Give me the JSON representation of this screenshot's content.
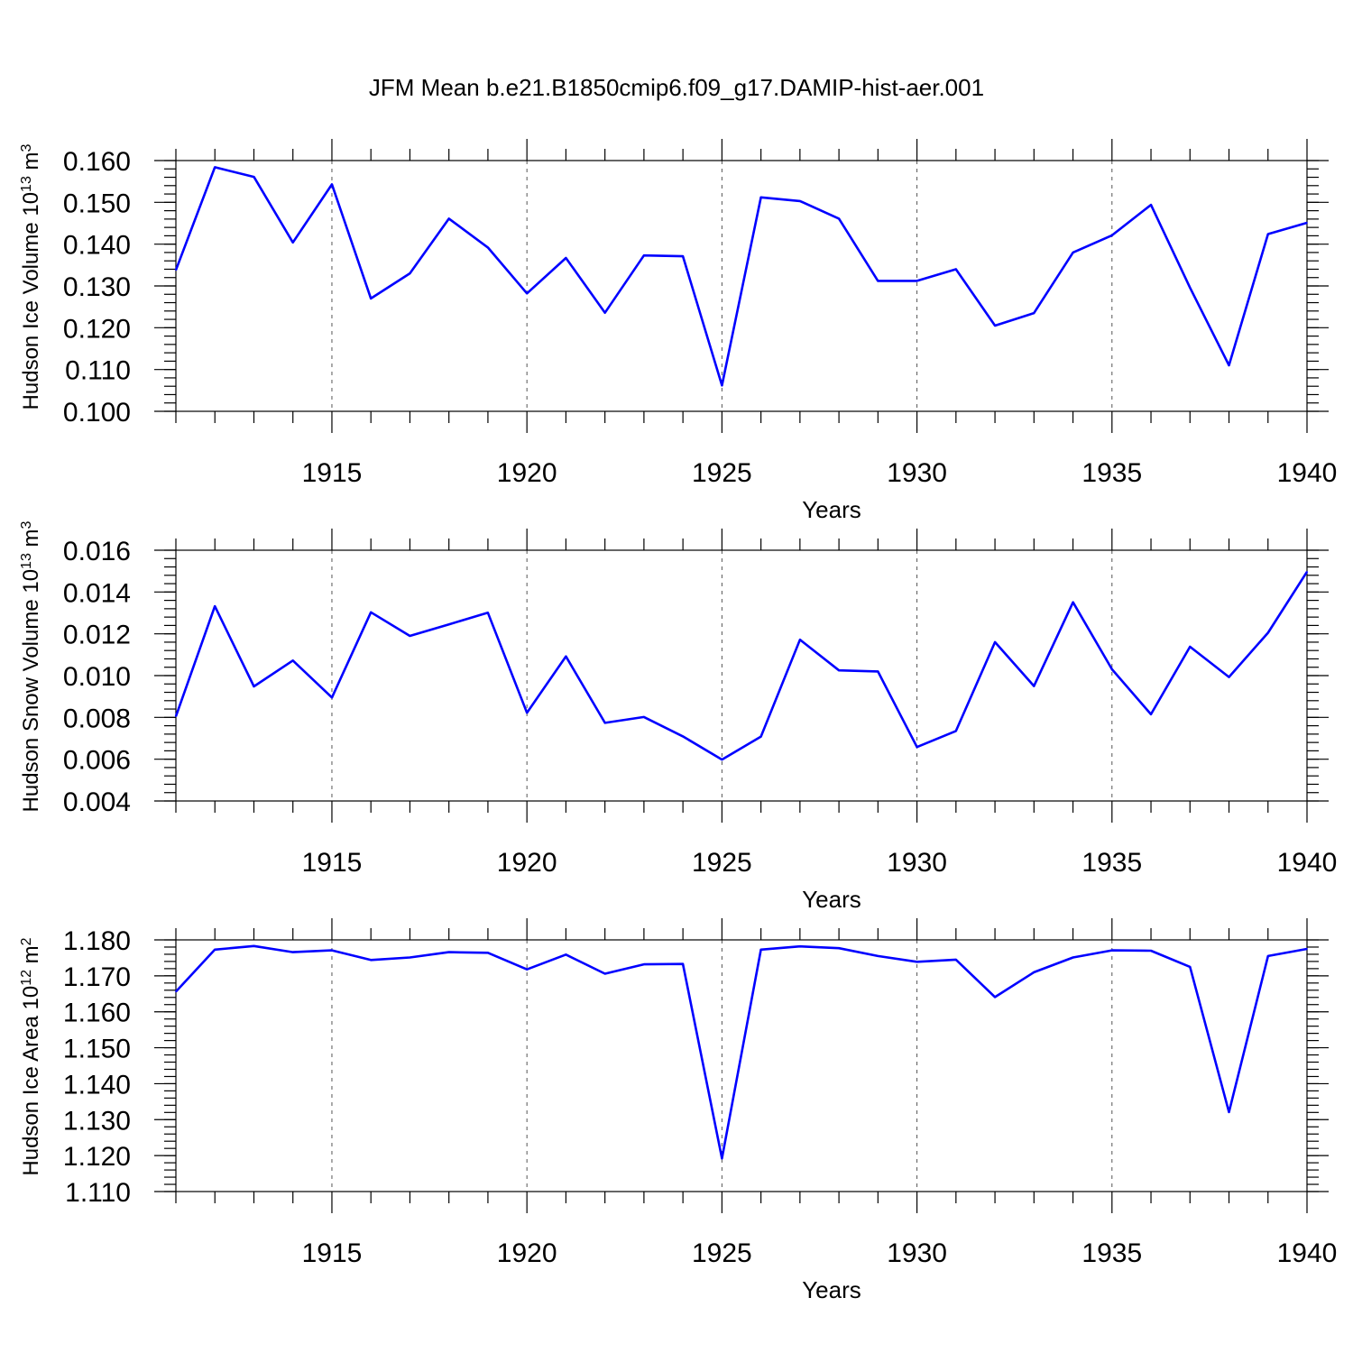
{
  "title": "JFM Mean b.e21.B1850cmip6.f09_g17.DAMIP-hist-aer.001",
  "line_color": "#0000ff",
  "chart_data": [
    {
      "type": "line",
      "ylabel": "Hudson Ice Volume",
      "yunit_base": "10",
      "yunit_exp": "13",
      "yunit_unit": "m",
      "yunit_unit_exp": "3",
      "xlabel": "Years",
      "xlim": [
        1911,
        1940
      ],
      "ylim": [
        0.1,
        0.16
      ],
      "yticks": [
        0.1,
        0.11,
        0.12,
        0.13,
        0.14,
        0.15,
        0.16
      ],
      "ytick_labels": [
        "0.100",
        "0.110",
        "0.120",
        "0.130",
        "0.140",
        "0.150",
        "0.160"
      ],
      "yminor_step": 0.002,
      "xticks": [
        1915,
        1920,
        1925,
        1930,
        1935,
        1940
      ],
      "xtick_labels": [
        "1915",
        "1920",
        "1925",
        "1930",
        "1935",
        "1940"
      ],
      "grid": "dashed vertical at major x ticks",
      "x": [
        1911,
        1912,
        1913,
        1914,
        1915,
        1916,
        1917,
        1918,
        1919,
        1920,
        1921,
        1922,
        1923,
        1924,
        1925,
        1926,
        1927,
        1928,
        1929,
        1930,
        1931,
        1932,
        1933,
        1934,
        1935,
        1936,
        1937,
        1938,
        1939,
        1940
      ],
      "series": [
        {
          "name": "Hudson Ice Volume",
          "values": [
            0.1338,
            0.1584,
            0.1561,
            0.1404,
            0.1543,
            0.127,
            0.133,
            0.1461,
            0.1392,
            0.1282,
            0.1367,
            0.1236,
            0.1373,
            0.1371,
            0.1062,
            0.1512,
            0.1503,
            0.1461,
            0.1312,
            0.1312,
            0.134,
            0.1205,
            0.1235,
            0.138,
            0.1421,
            0.1494,
            0.1296,
            0.111,
            0.1424,
            0.1451
          ]
        }
      ]
    },
    {
      "type": "line",
      "ylabel": "Hudson Snow Volume",
      "yunit_base": "10",
      "yunit_exp": "13",
      "yunit_unit": "m",
      "yunit_unit_exp": "3",
      "xlabel": "Years",
      "xlim": [
        1911,
        1940
      ],
      "ylim": [
        0.004,
        0.016
      ],
      "yticks": [
        0.004,
        0.006,
        0.008,
        0.01,
        0.012,
        0.014,
        0.016
      ],
      "ytick_labels": [
        "0.004",
        "0.006",
        "0.008",
        "0.010",
        "0.012",
        "0.014",
        "0.016"
      ],
      "yminor_step": 0.0004,
      "xticks": [
        1915,
        1920,
        1925,
        1930,
        1935,
        1940
      ],
      "xtick_labels": [
        "1915",
        "1920",
        "1925",
        "1930",
        "1935",
        "1940"
      ],
      "grid": "dashed vertical at major x ticks",
      "x": [
        1911,
        1912,
        1913,
        1914,
        1915,
        1916,
        1917,
        1918,
        1919,
        1920,
        1921,
        1922,
        1923,
        1924,
        1925,
        1926,
        1927,
        1928,
        1929,
        1930,
        1931,
        1932,
        1933,
        1934,
        1935,
        1936,
        1937,
        1938,
        1939,
        1940
      ],
      "series": [
        {
          "name": "Hudson Snow Volume",
          "values": [
            0.00805,
            0.01332,
            0.00948,
            0.01072,
            0.00895,
            0.01303,
            0.0119,
            0.01245,
            0.01301,
            0.00822,
            0.01092,
            0.00774,
            0.00802,
            0.00709,
            0.00598,
            0.00708,
            0.01172,
            0.01025,
            0.0102,
            0.00658,
            0.00735,
            0.0116,
            0.0095,
            0.01351,
            0.0103,
            0.00815,
            0.01138,
            0.00993,
            0.01205,
            0.01497
          ]
        }
      ]
    },
    {
      "type": "line",
      "ylabel": "Hudson Ice Area",
      "yunit_base": "10",
      "yunit_exp": "12",
      "yunit_unit": "m",
      "yunit_unit_exp": "2",
      "xlabel": "Years",
      "xlim": [
        1911,
        1940
      ],
      "ylim": [
        1.11,
        1.18
      ],
      "yticks": [
        1.11,
        1.12,
        1.13,
        1.14,
        1.15,
        1.16,
        1.17,
        1.18
      ],
      "ytick_labels": [
        "1.110",
        "1.120",
        "1.130",
        "1.140",
        "1.150",
        "1.160",
        "1.170",
        "1.180"
      ],
      "yminor_step": 0.002,
      "xticks": [
        1915,
        1920,
        1925,
        1930,
        1935,
        1940
      ],
      "xtick_labels": [
        "1915",
        "1920",
        "1925",
        "1930",
        "1935",
        "1940"
      ],
      "grid": "dashed vertical at major x ticks",
      "x": [
        1911,
        1912,
        1913,
        1914,
        1915,
        1916,
        1917,
        1918,
        1919,
        1920,
        1921,
        1922,
        1923,
        1924,
        1925,
        1926,
        1927,
        1928,
        1929,
        1930,
        1931,
        1932,
        1933,
        1934,
        1935,
        1936,
        1937,
        1938,
        1939,
        1940
      ],
      "series": [
        {
          "name": "Hudson Ice Area",
          "values": [
            1.1656,
            1.1773,
            1.1783,
            1.1766,
            1.1771,
            1.1744,
            1.1751,
            1.1766,
            1.1764,
            1.1718,
            1.1759,
            1.1706,
            1.1732,
            1.1733,
            1.1192,
            1.1773,
            1.1782,
            1.1777,
            1.1755,
            1.1739,
            1.1745,
            1.1641,
            1.171,
            1.1751,
            1.1771,
            1.177,
            1.1725,
            1.1321,
            1.1755,
            1.1775
          ]
        }
      ]
    }
  ]
}
